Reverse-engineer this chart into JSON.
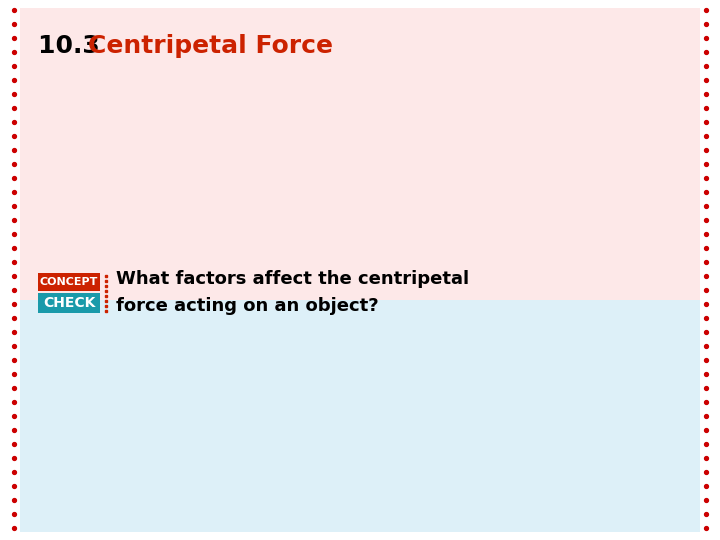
{
  "bg_color": "#ffffff",
  "pink_rect_color": "#fde8e8",
  "blue_rect_color": "#ddf0f8",
  "border_color": "#cc0000",
  "title_number": "10.3 ",
  "title_text": "Centripetal Force",
  "title_number_color": "#000000",
  "title_text_color": "#cc2200",
  "title_fontsize": 18,
  "concept_text": "CONCEPT",
  "check_text": "CHECK",
  "concept_color": "#cc2200",
  "check_color": "#1a9aaa",
  "concept_bg": "#cc2200",
  "check_bg": "#1a9aaa",
  "concept_fontsize": 8,
  "check_fontsize": 10,
  "question_line1": "What factors affect the centripetal",
  "question_line2": "force acting on an object?",
  "question_color": "#000000",
  "question_fontsize": 13,
  "dot_color": "#cc0000",
  "dot_size": 2.8
}
